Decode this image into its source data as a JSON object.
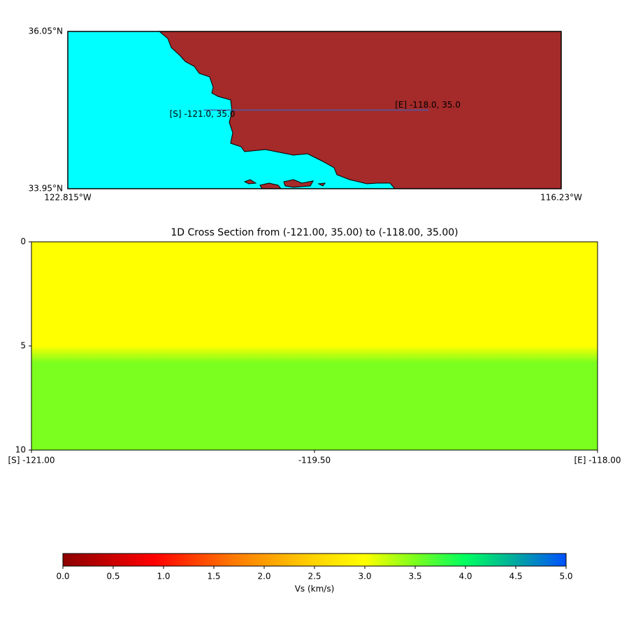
{
  "chart_data": [
    {
      "type": "map",
      "xlim": [
        -122.815,
        -116.23
      ],
      "ylim": [
        33.95,
        36.05
      ],
      "xticks": [
        {
          "value": -122.815,
          "label": "122.815°W"
        },
        {
          "value": -116.23,
          "label": "116.23°W"
        }
      ],
      "yticks": [
        {
          "value": 33.95,
          "label": "33.95°N"
        },
        {
          "value": 36.05,
          "label": "36.05°N"
        }
      ],
      "ocean_color": "#00ffff",
      "land_color": "#a52a2a",
      "line_color": "#4a5ea8",
      "x": [
        -121.0,
        -118.0
      ],
      "y": [
        35.0,
        35.0
      ],
      "annotations": [
        {
          "text": "[S] -121.0, 35.0",
          "x": -121.0,
          "y": 35.0
        },
        {
          "text": "[E] -118.0, 35.0",
          "x": -118.0,
          "y": 35.0
        }
      ]
    },
    {
      "type": "heatmap",
      "title": "1D Cross Section from (-121.00, 35.00) to (-118.00, 35.00)",
      "xlim": [
        -121.0,
        -118.0
      ],
      "ylim": [
        10,
        0
      ],
      "xticks": [
        {
          "value": -121.0,
          "label": "[S] -121.00"
        },
        {
          "value": -119.5,
          "label": "-119.50"
        },
        {
          "value": -118.0,
          "label": "[E] -118.00"
        }
      ],
      "yticks": [
        0,
        5,
        10
      ],
      "depth": [
        0,
        5,
        5.8,
        10
      ],
      "values": [
        3.0,
        3.0,
        3.5,
        3.5
      ]
    },
    {
      "type": "colorbar",
      "label": "Vs (km/s)",
      "xlim": [
        0,
        5
      ],
      "xticks": [
        {
          "value": 0,
          "label": "0.0"
        },
        0.5,
        {
          "value": 1,
          "label": "1.0"
        },
        1.5,
        {
          "value": 2,
          "label": "2.0"
        },
        2.5,
        {
          "value": 3,
          "label": "3.0"
        },
        3.5,
        {
          "value": 4,
          "label": "4.0"
        },
        4.5,
        {
          "value": 5,
          "label": "5.0"
        }
      ],
      "stops": [
        0,
        0.9,
        1.7,
        2.5,
        3.0,
        3.5,
        4.0,
        4.5,
        5.0
      ],
      "colors": [
        "#8b0000",
        "#ff0000",
        "#ff7a00",
        "#ffd400",
        "#ffff00",
        "#7bff1e",
        "#00ff60",
        "#00a8a0",
        "#0050ff"
      ]
    }
  ]
}
